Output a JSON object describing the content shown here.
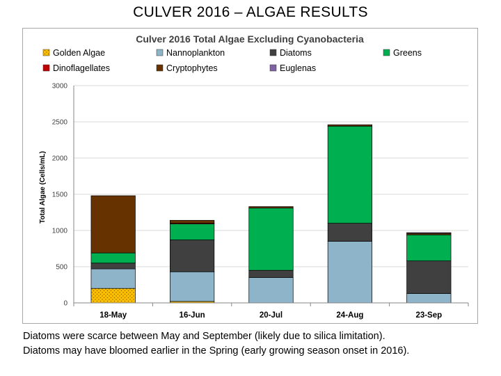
{
  "slide_title": "CULVER 2016 – ALGAE RESULTS",
  "caption": {
    "line1": "Diatoms were scarce between May and September (likely due to silica limitation).",
    "line2": "Diatoms may have bloomed earlier in the Spring (early growing season onset in 2016)."
  },
  "chart_data": {
    "type": "bar",
    "stacked": true,
    "title": "Culver 2016 Total Algae Excluding Cyanobacteria",
    "ylabel": "Total Algae (Cells/mL)",
    "xlabel": "",
    "ylim": [
      0,
      3000
    ],
    "yticks": [
      0,
      500,
      1000,
      1500,
      2000,
      2500,
      3000
    ],
    "grid": true,
    "legend_position": "top",
    "categories": [
      "18-May",
      "16-Jun",
      "20-Jul",
      "24-Aug",
      "23-Sep"
    ],
    "series": [
      {
        "name": "Golden Algae",
        "color": "#ffc000",
        "pattern": "dots",
        "values": [
          200,
          20,
          0,
          0,
          0
        ]
      },
      {
        "name": "Nannoplankton",
        "color": "#8db4c9",
        "values": [
          270,
          410,
          350,
          850,
          130
        ]
      },
      {
        "name": "Diatoms",
        "color": "#404040",
        "values": [
          80,
          440,
          100,
          250,
          450
        ]
      },
      {
        "name": "Greens",
        "color": "#00b050",
        "values": [
          140,
          220,
          860,
          1340,
          360
        ]
      },
      {
        "name": "Dinoflagellates",
        "color": "#c00000",
        "values": [
          0,
          10,
          0,
          0,
          0
        ]
      },
      {
        "name": "Cryptophytes",
        "color": "#663300",
        "values": [
          790,
          40,
          20,
          20,
          20
        ]
      },
      {
        "name": "Euglenas",
        "color": "#8064a2",
        "values": [
          0,
          0,
          0,
          0,
          10
        ]
      }
    ],
    "legend_order": [
      "Golden Algae",
      "Nannoplankton",
      "Diatoms",
      "Greens",
      "Dinoflagellates",
      "Cryptophytes",
      "Euglenas"
    ]
  }
}
